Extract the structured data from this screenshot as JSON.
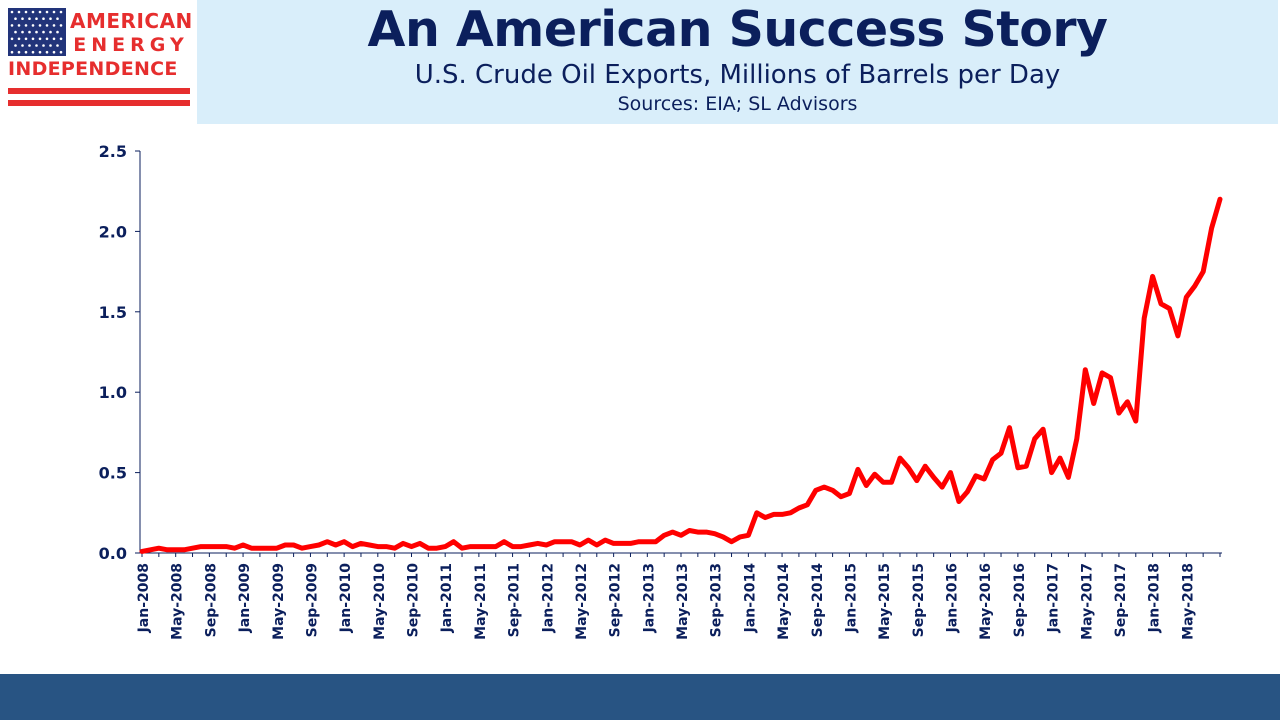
{
  "logo": {
    "line1": "AMERICAN",
    "line2": "ENERGY",
    "line3": "INDEPENDENCE",
    "color": "#e62e2e",
    "flag_blue": "#22347a"
  },
  "chart_data": {
    "type": "line",
    "title": "An American Success Story",
    "subtitle": "U.S. Crude Oil Exports, Millions of Barrels per Day",
    "sources": "Sources: EIA; SL Advisors",
    "xlabel": "",
    "ylabel": "",
    "ylim": [
      0,
      2.5
    ],
    "yticks": [
      "0.0",
      "0.5",
      "1.0",
      "1.5",
      "2.0",
      "2.5"
    ],
    "x_start": "Jan-2008",
    "x_end": "Jul-2018",
    "xtick_labels": [
      "Jan-2008",
      "May-2008",
      "Sep-2008",
      "Jan-2009",
      "May-2009",
      "Sep-2009",
      "Jan-2010",
      "May-2010",
      "Sep-2010",
      "Jan-2011",
      "May-2011",
      "Sep-2011",
      "Jan-2012",
      "May-2012",
      "Sep-2012",
      "Jan-2013",
      "May-2013",
      "Sep-2013",
      "Jan-2014",
      "May-2014",
      "Sep-2014",
      "Jan-2015",
      "May-2015",
      "Sep-2015",
      "Jan-2016",
      "May-2016",
      "Sep-2016",
      "Jan-2017",
      "May-2017",
      "Sep-2017",
      "Jan-2018",
      "May-2018"
    ],
    "series": [
      {
        "color": "#ff0000",
        "values": [
          0.01,
          0.02,
          0.03,
          0.02,
          0.02,
          0.02,
          0.03,
          0.04,
          0.04,
          0.04,
          0.04,
          0.03,
          0.05,
          0.03,
          0.03,
          0.03,
          0.03,
          0.05,
          0.05,
          0.03,
          0.04,
          0.05,
          0.07,
          0.05,
          0.07,
          0.04,
          0.06,
          0.05,
          0.04,
          0.04,
          0.03,
          0.06,
          0.04,
          0.06,
          0.03,
          0.03,
          0.04,
          0.07,
          0.03,
          0.04,
          0.04,
          0.04,
          0.04,
          0.07,
          0.04,
          0.04,
          0.05,
          0.06,
          0.05,
          0.07,
          0.07,
          0.07,
          0.05,
          0.08,
          0.05,
          0.08,
          0.06,
          0.06,
          0.06,
          0.07,
          0.07,
          0.07,
          0.11,
          0.13,
          0.11,
          0.14,
          0.13,
          0.13,
          0.12,
          0.1,
          0.07,
          0.1,
          0.11,
          0.25,
          0.22,
          0.24,
          0.24,
          0.25,
          0.28,
          0.3,
          0.39,
          0.41,
          0.39,
          0.35,
          0.37,
          0.52,
          0.42,
          0.49,
          0.44,
          0.44,
          0.59,
          0.53,
          0.45,
          0.54,
          0.47,
          0.41,
          0.5,
          0.32,
          0.38,
          0.48,
          0.46,
          0.58,
          0.62,
          0.78,
          0.53,
          0.54,
          0.71,
          0.77,
          0.5,
          0.59,
          0.47,
          0.71,
          1.14,
          0.93,
          1.12,
          1.09,
          0.87,
          0.94,
          0.82,
          1.46,
          1.72,
          1.55,
          1.52,
          1.35,
          1.59,
          1.66,
          1.75,
          2.02,
          2.2
        ]
      }
    ],
    "grid": false,
    "legend": "none"
  }
}
